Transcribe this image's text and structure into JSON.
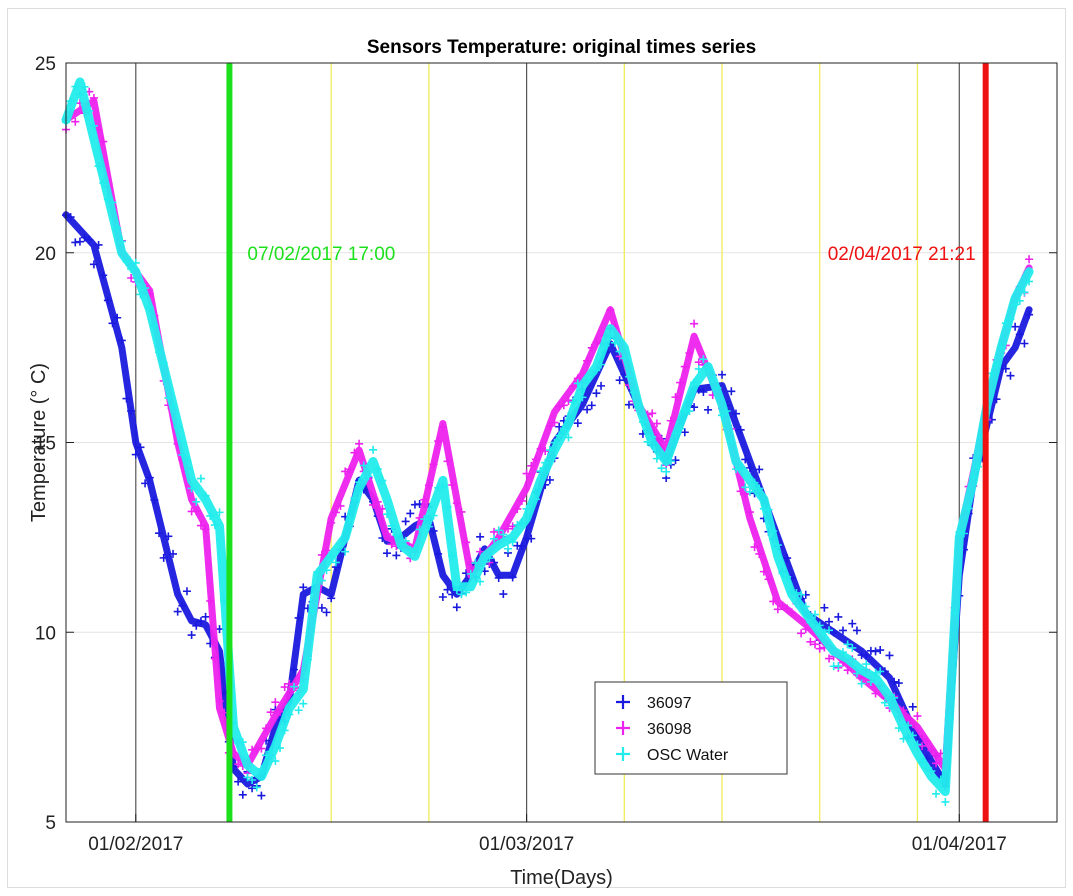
{
  "chart_data": {
    "type": "scatter",
    "title": "Sensors Temperature: original times series",
    "xlabel": "Time(Days)",
    "ylabel": "Temperature (° C)",
    "x_axis_type": "date",
    "xlim": [
      "2017-01-27",
      "2017-04-08"
    ],
    "ylim": [
      5,
      25
    ],
    "yticks": [
      5,
      10,
      15,
      20,
      25
    ],
    "xticks": [
      {
        "date": "2017-02-01",
        "label": "01/02/2017"
      },
      {
        "date": "2017-03-01",
        "label": "01/03/2017"
      },
      {
        "date": "2017-04-01",
        "label": "01/04/2017"
      }
    ],
    "grid": true,
    "monthly_lines": {
      "dates": [
        "2017-02-01",
        "2017-03-01",
        "2017-04-01"
      ],
      "color": "#555555"
    },
    "weekly_lines": {
      "dates": [
        "2017-02-15",
        "2017-02-22",
        "2017-03-08",
        "2017-03-15",
        "2017-03-22",
        "2017-03-29"
      ],
      "color": "#f2ec5c"
    },
    "markers": [
      {
        "date": "2017-02-07 17:00",
        "label": "07/02/2017 17:00",
        "color": "#1de01d"
      },
      {
        "date": "2017-04-02 21:21",
        "label": "02/04/2017 21:21",
        "color": "#ee1111"
      }
    ],
    "legend_position": "bottom-center",
    "series": [
      {
        "name": "36097",
        "color": "#1a1adf",
        "x": [
          "2017-01-27",
          "2017-01-29",
          "2017-01-31",
          "2017-02-01",
          "2017-02-02",
          "2017-02-03",
          "2017-02-04",
          "2017-02-05",
          "2017-02-06",
          "2017-02-07",
          "2017-02-08",
          "2017-02-09",
          "2017-02-10",
          "2017-02-11",
          "2017-02-12",
          "2017-02-13",
          "2017-02-14",
          "2017-02-15",
          "2017-02-16",
          "2017-02-17",
          "2017-02-18",
          "2017-02-19",
          "2017-02-20",
          "2017-02-21",
          "2017-02-22",
          "2017-02-23",
          "2017-02-24",
          "2017-02-25",
          "2017-02-26",
          "2017-02-27",
          "2017-02-28",
          "2017-03-01",
          "2017-03-03",
          "2017-03-05",
          "2017-03-07",
          "2017-03-09",
          "2017-03-11",
          "2017-03-13",
          "2017-03-15",
          "2017-03-17",
          "2017-03-19",
          "2017-03-21",
          "2017-03-23",
          "2017-03-25",
          "2017-03-27",
          "2017-03-29",
          "2017-03-31",
          "2017-04-01",
          "2017-04-02",
          "2017-04-03",
          "2017-04-04",
          "2017-04-05",
          "2017-04-06"
        ],
        "y": [
          21.0,
          20.2,
          17.5,
          15.0,
          14.0,
          12.5,
          11.0,
          10.3,
          10.2,
          9.5,
          6.4,
          6.0,
          6.2,
          7.5,
          8.2,
          11.0,
          11.2,
          11.0,
          12.5,
          14.0,
          13.5,
          12.4,
          12.5,
          12.8,
          13.0,
          11.5,
          11.0,
          11.5,
          12.2,
          11.5,
          11.5,
          12.5,
          15.0,
          16.0,
          17.6,
          16.0,
          14.5,
          16.4,
          16.5,
          14.5,
          12.5,
          10.5,
          10.0,
          9.5,
          8.8,
          7.2,
          6.0,
          11.5,
          14.0,
          15.5,
          17.0,
          17.5,
          18.5
        ]
      },
      {
        "name": "36098",
        "color": "#ee22ee",
        "x": [
          "2017-01-27",
          "2017-01-29",
          "2017-01-31",
          "2017-02-02",
          "2017-02-04",
          "2017-02-05",
          "2017-02-06",
          "2017-02-07",
          "2017-02-08",
          "2017-02-09",
          "2017-02-11",
          "2017-02-13",
          "2017-02-15",
          "2017-02-17",
          "2017-02-19",
          "2017-02-21",
          "2017-02-23",
          "2017-02-25",
          "2017-02-27",
          "2017-03-01",
          "2017-03-03",
          "2017-03-05",
          "2017-03-07",
          "2017-03-09",
          "2017-03-11",
          "2017-03-13",
          "2017-03-15",
          "2017-03-17",
          "2017-03-19",
          "2017-03-21",
          "2017-03-23",
          "2017-03-25",
          "2017-03-27",
          "2017-03-29",
          "2017-03-31",
          "2017-04-01",
          "2017-04-02",
          "2017-04-03",
          "2017-04-04",
          "2017-04-05",
          "2017-04-06"
        ],
        "y": [
          23.5,
          24.0,
          20.0,
          19.0,
          15.0,
          13.5,
          12.8,
          8.0,
          6.8,
          6.5,
          7.8,
          9.0,
          13.0,
          14.8,
          12.5,
          12.2,
          15.5,
          11.5,
          12.5,
          13.8,
          15.8,
          16.8,
          18.5,
          16.0,
          14.8,
          17.8,
          16.0,
          13.0,
          10.8,
          10.2,
          9.5,
          8.8,
          8.2,
          7.5,
          6.4,
          12.5,
          14.2,
          16.0,
          17.5,
          18.8,
          19.6
        ]
      },
      {
        "name": "OSC Water",
        "color": "#22ecec",
        "x": [
          "2017-01-27",
          "2017-01-28",
          "2017-01-29",
          "2017-01-30",
          "2017-01-31",
          "2017-02-01",
          "2017-02-02",
          "2017-02-03",
          "2017-02-04",
          "2017-02-05",
          "2017-02-06",
          "2017-02-07",
          "2017-02-08",
          "2017-02-09",
          "2017-02-10",
          "2017-02-11",
          "2017-02-12",
          "2017-02-13",
          "2017-02-14",
          "2017-02-15",
          "2017-02-16",
          "2017-02-17",
          "2017-02-18",
          "2017-02-19",
          "2017-02-20",
          "2017-02-21",
          "2017-02-22",
          "2017-02-23",
          "2017-02-24",
          "2017-02-25",
          "2017-02-26",
          "2017-02-27",
          "2017-02-28",
          "2017-03-01",
          "2017-03-02",
          "2017-03-03",
          "2017-03-04",
          "2017-03-05",
          "2017-03-06",
          "2017-03-07",
          "2017-03-08",
          "2017-03-09",
          "2017-03-10",
          "2017-03-11",
          "2017-03-12",
          "2017-03-13",
          "2017-03-14",
          "2017-03-15",
          "2017-03-16",
          "2017-03-17",
          "2017-03-18",
          "2017-03-19",
          "2017-03-20",
          "2017-03-21",
          "2017-03-22",
          "2017-03-23",
          "2017-03-24",
          "2017-03-25",
          "2017-03-26",
          "2017-03-27",
          "2017-03-28",
          "2017-03-29",
          "2017-03-30",
          "2017-03-31",
          "2017-04-01",
          "2017-04-02",
          "2017-04-03",
          "2017-04-04",
          "2017-04-05",
          "2017-04-06"
        ],
        "y": [
          23.5,
          24.5,
          23.0,
          21.5,
          20.0,
          19.5,
          18.5,
          17.0,
          15.5,
          14.0,
          13.5,
          12.8,
          7.5,
          6.5,
          6.2,
          7.0,
          8.0,
          8.5,
          11.5,
          12.0,
          12.5,
          13.8,
          14.5,
          13.5,
          12.3,
          12.0,
          13.0,
          14.0,
          11.2,
          11.2,
          12.0,
          12.3,
          12.5,
          13.0,
          14.0,
          14.8,
          15.5,
          16.5,
          17.0,
          18.0,
          17.5,
          16.0,
          15.0,
          14.5,
          15.5,
          16.5,
          17.0,
          16.0,
          14.5,
          14.0,
          13.5,
          12.0,
          11.0,
          10.5,
          10.0,
          9.5,
          9.3,
          9.0,
          8.8,
          8.3,
          7.5,
          6.8,
          6.2,
          5.8,
          12.5,
          14.0,
          16.0,
          17.5,
          18.8,
          19.5
        ]
      }
    ]
  }
}
